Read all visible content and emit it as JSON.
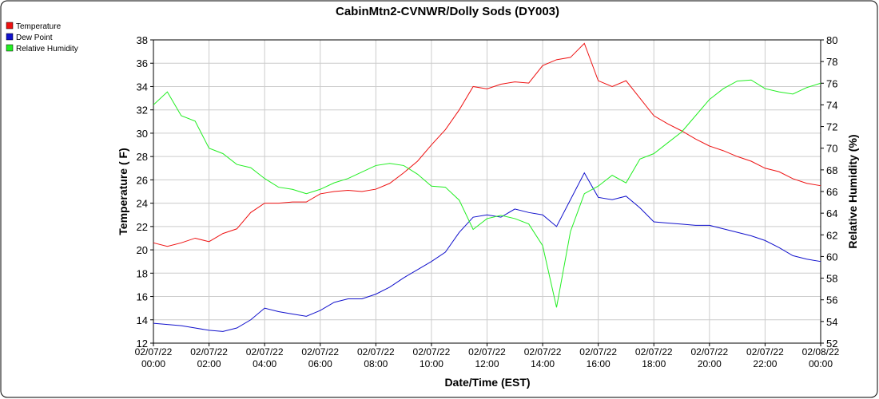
{
  "chart_data": {
    "type": "line",
    "title": "CabinMtn2-CVNWR/Dolly Sods (DY003)",
    "x_label": "Date/Time (EST)",
    "y_label": "Temperature ( F)",
    "y2_label": "Relative Humidity (%)",
    "x": [
      "02/07/22 00:00",
      "02/07/22 00:30",
      "02/07/22 01:00",
      "02/07/22 01:30",
      "02/07/22 02:00",
      "02/07/22 02:30",
      "02/07/22 03:00",
      "02/07/22 03:30",
      "02/07/22 04:00",
      "02/07/22 04:30",
      "02/07/22 05:00",
      "02/07/22 05:30",
      "02/07/22 06:00",
      "02/07/22 06:30",
      "02/07/22 07:00",
      "02/07/22 07:30",
      "02/07/22 08:00",
      "02/07/22 08:30",
      "02/07/22 09:00",
      "02/07/22 09:30",
      "02/07/22 10:00",
      "02/07/22 10:30",
      "02/07/22 11:00",
      "02/07/22 11:30",
      "02/07/22 12:00",
      "02/07/22 12:30",
      "02/07/22 13:00",
      "02/07/22 13:30",
      "02/07/22 14:00",
      "02/07/22 14:30",
      "02/07/22 15:00",
      "02/07/22 15:30",
      "02/07/22 16:00",
      "02/07/22 16:30",
      "02/07/22 17:00",
      "02/07/22 17:30",
      "02/07/22 18:00",
      "02/07/22 18:30",
      "02/07/22 19:00",
      "02/07/22 19:30",
      "02/07/22 20:00",
      "02/07/22 20:30",
      "02/07/22 21:00",
      "02/07/22 21:30",
      "02/07/22 22:00",
      "02/07/22 22:30",
      "02/07/22 23:00",
      "02/07/22 23:30",
      "02/08/22 00:00"
    ],
    "series": [
      {
        "name": "Temperature",
        "color": "#ee1111",
        "values": [
          20.6,
          20.3,
          20.6,
          21.0,
          20.7,
          21.4,
          21.8,
          23.2,
          24.0,
          24.0,
          24.1,
          24.1,
          24.8,
          25.0,
          25.1,
          25.0,
          25.2,
          25.7,
          26.6,
          27.6,
          29.0,
          30.3,
          32.0,
          34.0,
          33.8,
          34.2,
          34.4,
          34.3,
          35.8,
          36.3,
          36.5,
          37.7,
          34.5,
          34.0,
          34.5,
          33.0,
          31.5,
          30.8,
          30.2,
          29.5,
          28.9,
          28.5,
          28.0,
          27.6,
          27.0,
          26.7,
          26.1,
          25.7,
          25.5
        ]
      },
      {
        "name": "Dew Point",
        "color": "#1111cc",
        "values": [
          13.7,
          13.6,
          13.5,
          13.3,
          13.1,
          13.0,
          13.3,
          14.0,
          15.0,
          14.7,
          14.5,
          14.3,
          14.8,
          15.5,
          15.8,
          15.8,
          16.2,
          16.8,
          17.6,
          18.3,
          19.0,
          19.8,
          21.5,
          22.8,
          23.0,
          22.8,
          23.5,
          23.2,
          23.0,
          22.0,
          24.3,
          26.6,
          24.5,
          24.3,
          24.6,
          23.6,
          22.4,
          22.3,
          22.2,
          22.1,
          22.1,
          21.8,
          21.5,
          21.2,
          20.8,
          20.2,
          19.5,
          19.2,
          19.0
        ]
      },
      {
        "name": "Relative Humidity",
        "color": "#22ee22",
        "axis": "y2",
        "values": [
          74.0,
          75.2,
          73.0,
          72.5,
          70.0,
          69.5,
          68.5,
          68.2,
          67.2,
          66.4,
          66.2,
          65.8,
          66.2,
          66.8,
          67.2,
          67.8,
          68.4,
          68.6,
          68.4,
          67.6,
          66.5,
          66.4,
          65.2,
          62.5,
          63.5,
          63.8,
          63.5,
          63.0,
          61.0,
          55.3,
          62.3,
          65.8,
          66.5,
          67.5,
          66.8,
          69.0,
          69.5,
          70.5,
          71.5,
          73.0,
          74.5,
          75.5,
          76.2,
          76.3,
          75.5,
          75.2,
          75.0,
          75.6,
          76.0
        ]
      }
    ],
    "xticks": [
      {
        "value": "02/07/22 00:00",
        "label": [
          "02/07/22",
          "00:00"
        ]
      },
      {
        "value": "02/07/22 02:00",
        "label": [
          "02/07/22",
          "02:00"
        ]
      },
      {
        "value": "02/07/22 04:00",
        "label": [
          "02/07/22",
          "04:00"
        ]
      },
      {
        "value": "02/07/22 06:00",
        "label": [
          "02/07/22",
          "06:00"
        ]
      },
      {
        "value": "02/07/22 08:00",
        "label": [
          "02/07/22",
          "08:00"
        ]
      },
      {
        "value": "02/07/22 10:00",
        "label": [
          "02/07/22",
          "10:00"
        ]
      },
      {
        "value": "02/07/22 12:00",
        "label": [
          "02/07/22",
          "12:00"
        ]
      },
      {
        "value": "02/07/22 14:00",
        "label": [
          "02/07/22",
          "14:00"
        ]
      },
      {
        "value": "02/07/22 16:00",
        "label": [
          "02/07/22",
          "16:00"
        ]
      },
      {
        "value": "02/07/22 18:00",
        "label": [
          "02/07/22",
          "18:00"
        ]
      },
      {
        "value": "02/07/22 20:00",
        "label": [
          "02/07/22",
          "20:00"
        ]
      },
      {
        "value": "02/07/22 22:00",
        "label": [
          "02/07/22",
          "22:00"
        ]
      },
      {
        "value": "02/08/22 00:00",
        "label": [
          "02/08/22",
          "00:00"
        ]
      }
    ],
    "ylim": [
      12,
      38
    ],
    "yticks": [
      12,
      14,
      16,
      18,
      20,
      22,
      24,
      26,
      28,
      30,
      32,
      34,
      36,
      38
    ],
    "y2lim": [
      52,
      80
    ],
    "y2ticks": [
      52,
      54,
      56,
      58,
      60,
      62,
      64,
      66,
      68,
      70,
      72,
      74,
      76,
      78,
      80
    ],
    "grid": true,
    "legend": "top-left"
  }
}
